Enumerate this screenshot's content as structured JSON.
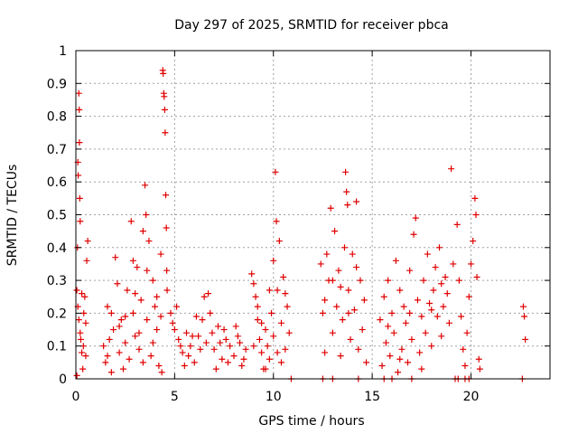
{
  "chart_data": {
    "type": "scatter",
    "title": "Day 297 of 2025, SRMTID for receiver pbca",
    "xlabel": "GPS time / hours",
    "ylabel": "SRMTID / TECUs",
    "xlim": [
      0,
      24
    ],
    "ylim": [
      0,
      1
    ],
    "xticks": [
      0,
      5,
      10,
      15,
      20
    ],
    "xtick_labels": [
      "0",
      "5",
      "10",
      "15",
      "20"
    ],
    "yticks": [
      0,
      0.1,
      0.2,
      0.3,
      0.4,
      0.5,
      0.6,
      0.7,
      0.8,
      0.9,
      1
    ],
    "ytick_labels": [
      "0",
      "0.1",
      "0.2",
      "0.3",
      "0.4",
      "0.5",
      "0.6",
      "0.7",
      "0.8",
      "0.9",
      "1"
    ],
    "grid": true,
    "marker": "plus",
    "color": "#e00000",
    "series": [
      {
        "name": "SRMTID",
        "points": [
          [
            0.05,
            0.27
          ],
          [
            0.08,
            0.4
          ],
          [
            0.1,
            0.66
          ],
          [
            0.12,
            0.62
          ],
          [
            0.15,
            0.87
          ],
          [
            0.17,
            0.82
          ],
          [
            0.18,
            0.72
          ],
          [
            0.2,
            0.55
          ],
          [
            0.22,
            0.48
          ],
          [
            0.1,
            0.22
          ],
          [
            0.15,
            0.18
          ],
          [
            0.25,
            0.12
          ],
          [
            0.3,
            0.08
          ],
          [
            0.35,
            0.03
          ],
          [
            0.4,
            0.2
          ],
          [
            0.45,
            0.25
          ],
          [
            0.5,
            0.17
          ],
          [
            0.55,
            0.36
          ],
          [
            0.6,
            0.42
          ],
          [
            0.3,
            0.26
          ],
          [
            0.38,
            0.1
          ],
          [
            0.5,
            0.07
          ],
          [
            0.05,
            0.01
          ],
          [
            0.22,
            0.14
          ],
          [
            1.4,
            0.1
          ],
          [
            1.5,
            0.05
          ],
          [
            1.6,
            0.22
          ],
          [
            1.7,
            0.12
          ],
          [
            1.8,
            0.02
          ],
          [
            1.9,
            0.15
          ],
          [
            2.0,
            0.37
          ],
          [
            2.1,
            0.29
          ],
          [
            2.2,
            0.08
          ],
          [
            2.3,
            0.18
          ],
          [
            2.4,
            0.03
          ],
          [
            2.5,
            0.11
          ],
          [
            2.6,
            0.27
          ],
          [
            2.7,
            0.06
          ],
          [
            2.8,
            0.48
          ],
          [
            2.9,
            0.2
          ],
          [
            3.0,
            0.13
          ],
          [
            3.1,
            0.34
          ],
          [
            3.2,
            0.09
          ],
          [
            3.3,
            0.24
          ],
          [
            3.4,
            0.45
          ],
          [
            3.5,
            0.59
          ],
          [
            3.55,
            0.5
          ],
          [
            3.6,
            0.18
          ],
          [
            3.7,
            0.42
          ],
          [
            3.8,
            0.07
          ],
          [
            3.9,
            0.3
          ],
          [
            4.0,
            0.22
          ],
          [
            4.1,
            0.15
          ],
          [
            4.2,
            0.04
          ],
          [
            4.3,
            0.38
          ],
          [
            4.35,
            0.02
          ],
          [
            4.4,
            0.94
          ],
          [
            4.42,
            0.93
          ],
          [
            4.45,
            0.87
          ],
          [
            4.47,
            0.86
          ],
          [
            4.5,
            0.82
          ],
          [
            4.52,
            0.75
          ],
          [
            4.55,
            0.56
          ],
          [
            4.58,
            0.46
          ],
          [
            4.6,
            0.33
          ],
          [
            4.62,
            0.27
          ],
          [
            1.6,
            0.07
          ],
          [
            2.2,
            0.16
          ],
          [
            2.5,
            0.19
          ],
          [
            3.0,
            0.26
          ],
          [
            3.2,
            0.14
          ],
          [
            3.6,
            0.33
          ],
          [
            3.9,
            0.11
          ],
          [
            4.1,
            0.25
          ],
          [
            1.8,
            0.2
          ],
          [
            2.9,
            0.36
          ],
          [
            3.4,
            0.05
          ],
          [
            4.3,
            0.19
          ],
          [
            4.8,
            0.2
          ],
          [
            5.0,
            0.15
          ],
          [
            5.2,
            0.12
          ],
          [
            5.4,
            0.08
          ],
          [
            5.6,
            0.14
          ],
          [
            5.8,
            0.1
          ],
          [
            6.0,
            0.05
          ],
          [
            6.2,
            0.13
          ],
          [
            6.4,
            0.18
          ],
          [
            6.6,
            0.11
          ],
          [
            6.8,
            0.2
          ],
          [
            7.0,
            0.09
          ],
          [
            7.2,
            0.16
          ],
          [
            7.4,
            0.06
          ],
          [
            7.6,
            0.12
          ],
          [
            7.8,
            0.1
          ],
          [
            8.0,
            0.07
          ],
          [
            8.2,
            0.13
          ],
          [
            8.4,
            0.04
          ],
          [
            8.6,
            0.09
          ],
          [
            5.1,
            0.22
          ],
          [
            5.5,
            0.04
          ],
          [
            6.1,
            0.19
          ],
          [
            6.5,
            0.25
          ],
          [
            7.1,
            0.03
          ],
          [
            7.5,
            0.15
          ],
          [
            8.1,
            0.16
          ],
          [
            8.3,
            0.11
          ],
          [
            4.9,
            0.17
          ],
          [
            5.3,
            0.1
          ],
          [
            5.7,
            0.07
          ],
          [
            6.3,
            0.09
          ],
          [
            6.9,
            0.14
          ],
          [
            7.3,
            0.11
          ],
          [
            7.7,
            0.05
          ],
          [
            8.5,
            0.06
          ],
          [
            6.7,
            0.26
          ],
          [
            5.9,
            0.13
          ],
          [
            8.9,
            0.32
          ],
          [
            9.0,
            0.29
          ],
          [
            9.1,
            0.25
          ],
          [
            9.2,
            0.18
          ],
          [
            9.3,
            0.12
          ],
          [
            9.4,
            0.08
          ],
          [
            9.5,
            0.03
          ],
          [
            9.6,
            0.15
          ],
          [
            9.7,
            0.1
          ],
          [
            9.8,
            0.06
          ],
          [
            9.9,
            0.2
          ],
          [
            10.0,
            0.13
          ],
          [
            10.1,
            0.63
          ],
          [
            10.15,
            0.48
          ],
          [
            10.2,
            0.27
          ],
          [
            10.3,
            0.42
          ],
          [
            10.4,
            0.17
          ],
          [
            10.5,
            0.31
          ],
          [
            10.6,
            0.09
          ],
          [
            10.7,
            0.22
          ],
          [
            10.8,
            0.14
          ],
          [
            9.2,
            0.22
          ],
          [
            9.6,
            0.03
          ],
          [
            10.0,
            0.36
          ],
          [
            10.4,
            0.05
          ],
          [
            10.6,
            0.26
          ],
          [
            9.4,
            0.17
          ],
          [
            9.8,
            0.27
          ],
          [
            10.2,
            0.08
          ],
          [
            9.0,
            0.1
          ],
          [
            10.9,
            0.0
          ],
          [
            12.4,
            0.35
          ],
          [
            12.5,
            0.2
          ],
          [
            12.6,
            0.08
          ],
          [
            12.7,
            0.38
          ],
          [
            12.8,
            0.3
          ],
          [
            12.9,
            0.52
          ],
          [
            13.0,
            0.14
          ],
          [
            13.1,
            0.45
          ],
          [
            13.2,
            0.22
          ],
          [
            13.3,
            0.33
          ],
          [
            13.4,
            0.07
          ],
          [
            13.5,
            0.18
          ],
          [
            13.6,
            0.4
          ],
          [
            13.65,
            0.63
          ],
          [
            13.7,
            0.57
          ],
          [
            13.75,
            0.53
          ],
          [
            13.8,
            0.27
          ],
          [
            13.9,
            0.12
          ],
          [
            14.0,
            0.38
          ],
          [
            14.1,
            0.21
          ],
          [
            14.2,
            0.54
          ],
          [
            14.3,
            0.09
          ],
          [
            14.4,
            0.3
          ],
          [
            14.5,
            0.15
          ],
          [
            14.6,
            0.24
          ],
          [
            14.7,
            0.05
          ],
          [
            12.6,
            0.24
          ],
          [
            13.0,
            0.3
          ],
          [
            13.4,
            0.28
          ],
          [
            13.8,
            0.2
          ],
          [
            14.2,
            0.34
          ],
          [
            12.5,
            0.0
          ],
          [
            13.0,
            0.0
          ],
          [
            14.3,
            0.0
          ],
          [
            15.4,
            0.18
          ],
          [
            15.5,
            0.04
          ],
          [
            15.6,
            0.25
          ],
          [
            15.7,
            0.11
          ],
          [
            15.8,
            0.3
          ],
          [
            15.9,
            0.07
          ],
          [
            16.0,
            0.2
          ],
          [
            16.1,
            0.14
          ],
          [
            16.2,
            0.36
          ],
          [
            16.3,
            0.02
          ],
          [
            16.4,
            0.27
          ],
          [
            16.5,
            0.09
          ],
          [
            16.6,
            0.22
          ],
          [
            16.7,
            0.17
          ],
          [
            16.8,
            0.05
          ],
          [
            16.9,
            0.33
          ],
          [
            17.0,
            0.12
          ],
          [
            17.1,
            0.44
          ],
          [
            17.2,
            0.49
          ],
          [
            17.3,
            0.24
          ],
          [
            17.4,
            0.08
          ],
          [
            17.5,
            0.19
          ],
          [
            17.6,
            0.3
          ],
          [
            17.7,
            0.14
          ],
          [
            17.8,
            0.38
          ],
          [
            17.9,
            0.23
          ],
          [
            18.0,
            0.1
          ],
          [
            18.1,
            0.27
          ],
          [
            18.2,
            0.34
          ],
          [
            18.3,
            0.19
          ],
          [
            18.4,
            0.4
          ],
          [
            18.5,
            0.29
          ],
          [
            18.6,
            0.22
          ],
          [
            18.7,
            0.31
          ],
          [
            18.8,
            0.26
          ],
          [
            18.9,
            0.17
          ],
          [
            19.0,
            0.64
          ],
          [
            19.1,
            0.35
          ],
          [
            15.6,
            0.0
          ],
          [
            16.0,
            0.0
          ],
          [
            17.0,
            0.0
          ],
          [
            15.8,
            0.16
          ],
          [
            16.4,
            0.06
          ],
          [
            16.9,
            0.2
          ],
          [
            17.5,
            0.03
          ],
          [
            18.0,
            0.21
          ],
          [
            18.5,
            0.13
          ],
          [
            19.3,
            0.47
          ],
          [
            19.4,
            0.3
          ],
          [
            19.5,
            0.19
          ],
          [
            19.6,
            0.09
          ],
          [
            19.7,
            0.04
          ],
          [
            19.8,
            0.14
          ],
          [
            19.9,
            0.25
          ],
          [
            20.0,
            0.35
          ],
          [
            20.1,
            0.42
          ],
          [
            20.2,
            0.55
          ],
          [
            20.25,
            0.5
          ],
          [
            20.3,
            0.31
          ],
          [
            20.4,
            0.06
          ],
          [
            20.45,
            0.03
          ],
          [
            19.2,
            0.0
          ],
          [
            19.35,
            0.0
          ],
          [
            19.7,
            0.0
          ],
          [
            19.9,
            0.0
          ],
          [
            22.6,
            0.0
          ],
          [
            22.65,
            0.22
          ],
          [
            22.7,
            0.19
          ],
          [
            22.75,
            0.12
          ]
        ]
      }
    ]
  }
}
